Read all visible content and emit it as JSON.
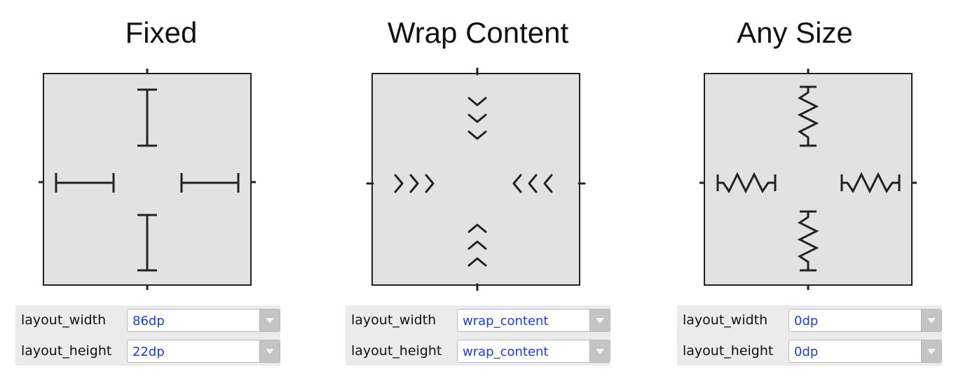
{
  "panels": [
    {
      "title": "Fixed",
      "icon": "fixed-size-icon",
      "width_label": "layout_width",
      "width_value": "86dp",
      "height_label": "layout_height",
      "height_value": "22dp"
    },
    {
      "title": "Wrap Content",
      "icon": "wrap-content-icon",
      "width_label": "layout_width",
      "width_value": "wrap_content",
      "height_label": "layout_height",
      "height_value": "wrap_content"
    },
    {
      "title": "Any Size",
      "icon": "any-size-spring-icon",
      "width_label": "layout_width",
      "width_value": "0dp",
      "height_label": "layout_height",
      "height_value": "0dp"
    }
  ],
  "colors": {
    "value_text": "#1a3fd6",
    "widget_fill": "#e2e2e2",
    "props_bg": "#ebebeb",
    "stroke": "#222222"
  }
}
